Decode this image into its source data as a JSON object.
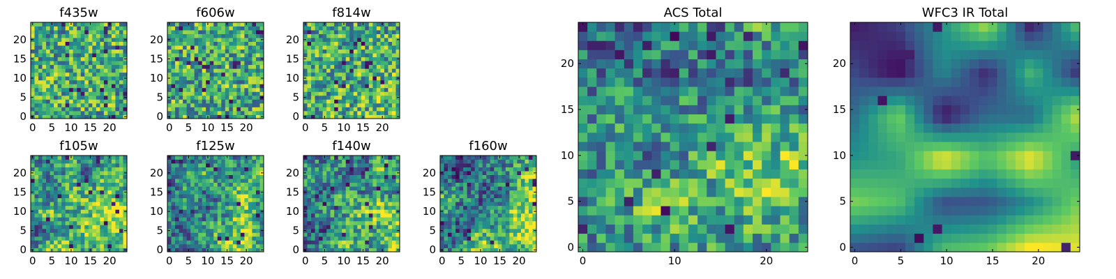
{
  "figure": {
    "colormap": "viridis",
    "colormap_stops": [
      "#440154",
      "#3b528b",
      "#21918c",
      "#5ec962",
      "#fde725"
    ]
  },
  "chart_data": [
    {
      "type": "heatmap",
      "title": "f435w",
      "grid": [
        25,
        25
      ],
      "xticks": [
        0,
        5,
        10,
        15,
        20
      ],
      "yticks": [
        0,
        5,
        10,
        15,
        20
      ],
      "texture": "fine-noise",
      "low_region": "scattered",
      "high_region": "scattered",
      "bias": 0.0,
      "seed": 11
    },
    {
      "type": "heatmap",
      "title": "f606w",
      "grid": [
        25,
        25
      ],
      "xticks": [
        0,
        5,
        10,
        15,
        20
      ],
      "yticks": [
        0,
        5,
        10,
        15,
        20
      ],
      "texture": "fine-noise",
      "low_region": "scattered",
      "high_region": "scattered",
      "bias": 0.0,
      "seed": 23
    },
    {
      "type": "heatmap",
      "title": "f814w",
      "grid": [
        25,
        25
      ],
      "xticks": [
        0,
        5,
        10,
        15,
        20
      ],
      "yticks": [
        0,
        5,
        10,
        15,
        20
      ],
      "texture": "fine-noise",
      "low_region": "scattered",
      "high_region": "bottom-right",
      "bias": 0.1,
      "seed": 37
    },
    {
      "type": "heatmap",
      "title": "f105w",
      "grid": [
        25,
        25
      ],
      "xticks": [
        0,
        5,
        10,
        15,
        20
      ],
      "yticks": [
        0,
        5,
        10,
        15,
        20
      ],
      "texture": "noise",
      "low_region": "left",
      "high_region": "bottom-right",
      "bias": 0.3,
      "seed": 41
    },
    {
      "type": "heatmap",
      "title": "f125w",
      "grid": [
        25,
        25
      ],
      "xticks": [
        0,
        5,
        10,
        15,
        20
      ],
      "yticks": [
        0,
        5,
        10,
        15,
        20
      ],
      "texture": "noise",
      "low_region": "left",
      "high_region": "bottom-right",
      "bias": 0.3,
      "seed": 53
    },
    {
      "type": "heatmap",
      "title": "f140w",
      "grid": [
        25,
        25
      ],
      "xticks": [
        0,
        5,
        10,
        15,
        20
      ],
      "yticks": [
        0,
        5,
        10,
        15,
        20
      ],
      "texture": "noise",
      "low_region": "left",
      "high_region": "bottom-right",
      "bias": 0.45,
      "seed": 67
    },
    {
      "type": "heatmap",
      "title": "f160w",
      "grid": [
        25,
        25
      ],
      "xticks": [
        0,
        5,
        10,
        15,
        20
      ],
      "yticks": [
        0,
        5,
        10,
        15,
        20
      ],
      "texture": "noise",
      "low_region": "left",
      "high_region": "bottom-right",
      "bias": 0.55,
      "seed": 79
    },
    {
      "type": "heatmap",
      "title": "ACS Total",
      "grid": [
        25,
        25
      ],
      "xticks": [
        0,
        10,
        20
      ],
      "yticks": [
        0,
        5,
        10,
        15,
        20
      ],
      "texture": "noise",
      "low_region": "upper-left",
      "high_region": "bottom-right",
      "bias": 0.25,
      "seed": 97
    },
    {
      "type": "heatmap",
      "title": "WFC3 IR Total",
      "grid": [
        25,
        25
      ],
      "xticks": [
        0,
        5,
        10,
        15,
        20
      ],
      "yticks": [
        0,
        5,
        10,
        15,
        20
      ],
      "texture": "smooth",
      "low_region": "left",
      "high_region": "bottom-right",
      "bias": 0.6,
      "seed": 131
    }
  ]
}
